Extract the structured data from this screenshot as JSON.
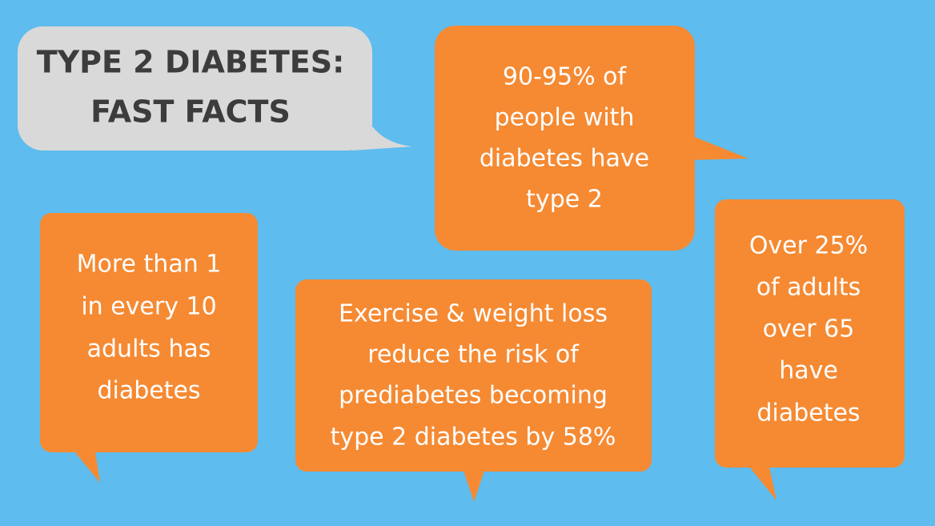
{
  "title": {
    "lines": [
      "TYPE 2 DIABETES:",
      "FAST FACTS"
    ]
  },
  "facts": [
    {
      "lines": [
        "90-95% of",
        "people with",
        "diabetes have",
        "type 2"
      ]
    },
    {
      "lines": [
        "More than 1",
        "in every 10",
        "adults has",
        "diabetes"
      ]
    },
    {
      "lines": [
        "Exercise & weight loss",
        "reduce the risk of",
        "prediabetes becoming",
        "type 2 diabetes by 58%"
      ]
    },
    {
      "lines": [
        "Over 25%",
        "of adults",
        "over 65",
        "have",
        "diabetes"
      ]
    }
  ]
}
